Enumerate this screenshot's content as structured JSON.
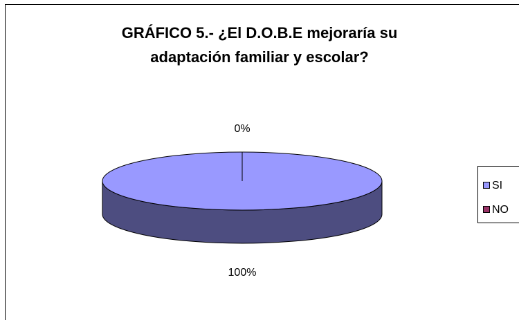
{
  "chart_data": {
    "type": "pie3d",
    "title": "GRÁFICO 5.- ¿El D.O.B.E mejoraría su adaptación familiar y escolar?",
    "categories": [
      "SI",
      "NO"
    ],
    "values": [
      100,
      0
    ],
    "value_labels": [
      "100%",
      "0%"
    ],
    "colors": [
      "#9999ff",
      "#993366"
    ],
    "legend": "right"
  }
}
